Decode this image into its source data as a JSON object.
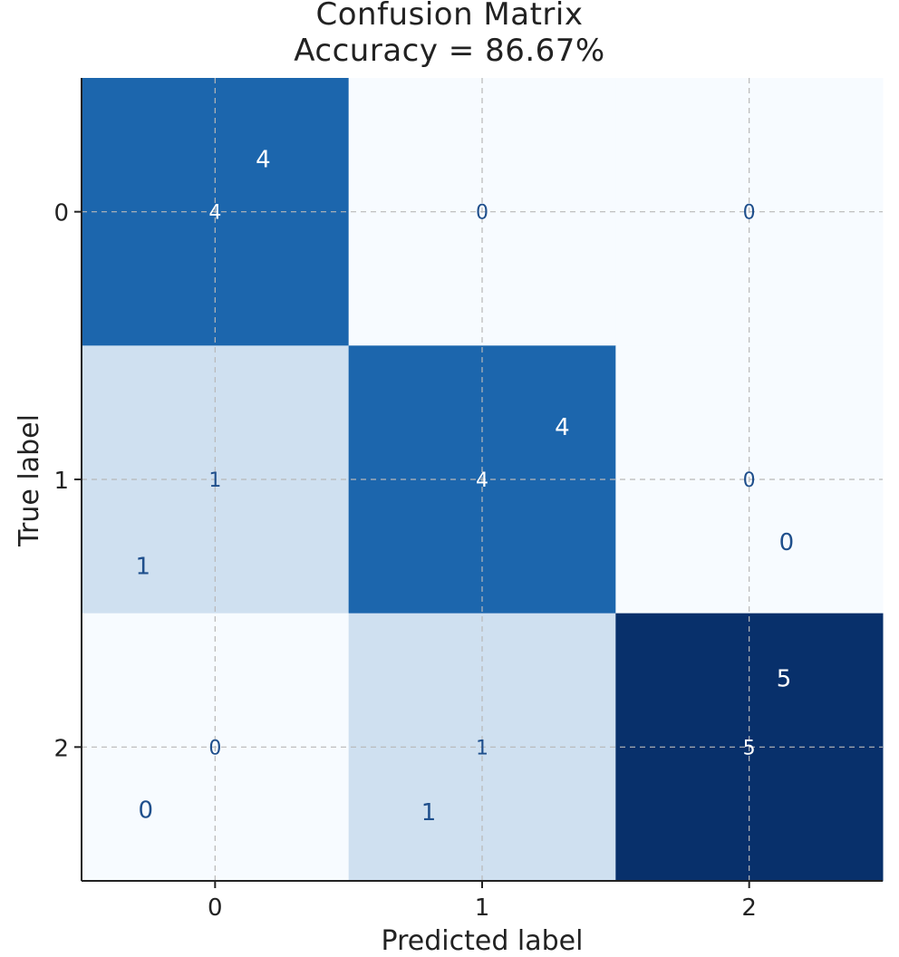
{
  "chart_data": {
    "type": "heatmap",
    "title_lines": [
      "Confusion Matrix",
      "Accuracy = 86.67%"
    ],
    "xlabel": "Predicted label",
    "ylabel": "True label",
    "x_categories": [
      "0",
      "1",
      "2"
    ],
    "y_categories": [
      "0",
      "1",
      "2"
    ],
    "values": [
      [
        4,
        0,
        0
      ],
      [
        1,
        4,
        0
      ],
      [
        0,
        1,
        5
      ]
    ],
    "value_labels": [
      [
        "4",
        "0",
        "0"
      ],
      [
        "1",
        "4",
        "0"
      ],
      [
        "0",
        "1",
        "5"
      ]
    ],
    "offset_labels": [
      [
        "4",
        "",
        ""
      ],
      [
        "1",
        "4",
        "0"
      ],
      [
        "0",
        "1",
        "5"
      ]
    ],
    "colormap": "Blues",
    "grid": true,
    "colors": {
      "high": "#08306b",
      "mid": "#1c66ad",
      "low": "#cfe0f0",
      "zero": "#f7fbff",
      "text_dark": "#1f4f8c",
      "text_light": "#ffffff",
      "grid": "#b8b8b8"
    }
  }
}
